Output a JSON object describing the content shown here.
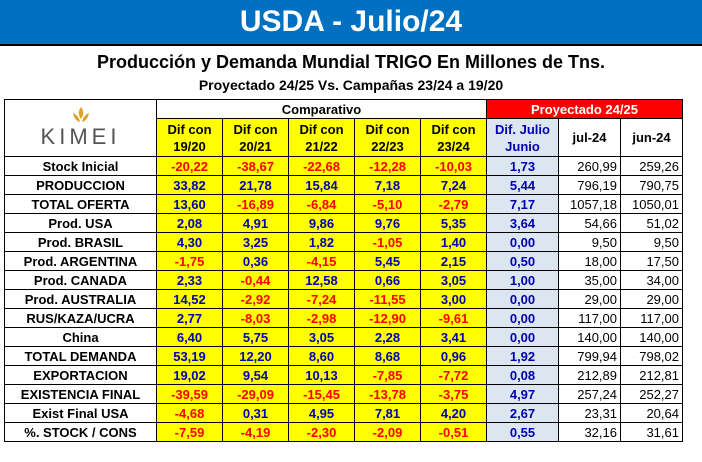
{
  "title": "USDA - Julio/24",
  "subtitle1": "Producción y Demanda Mundial TRIGO  En Millones de Tns.",
  "subtitle2": "Proyectado 24/25  Vs. Campañas 23/24 a 19/20",
  "logo_text": "KIMEI",
  "headers": {
    "comparativo": "Comparativo",
    "proyectado": "Proyectado  24/25",
    "cols": [
      {
        "l1": "Dif con",
        "l2": "19/20"
      },
      {
        "l1": "Dif con",
        "l2": "20/21"
      },
      {
        "l1": "Dif con",
        "l2": "21/22"
      },
      {
        "l1": "Dif con",
        "l2": "22/23"
      },
      {
        "l1": "Dif con",
        "l2": "23/24"
      }
    ],
    "dif_julio": {
      "l1": "Dif. Julio",
      "l2": "Junio"
    },
    "jul": "jul-24",
    "jun": "jun-24"
  },
  "rows": [
    {
      "label": "Stock Inicial",
      "d": [
        "-20,22",
        "-38,67",
        "-22,68",
        "-12,28",
        "-10,03"
      ],
      "dif": "1,73",
      "jul": "260,99",
      "jun": "259,26"
    },
    {
      "label": "PRODUCCION",
      "d": [
        "33,82",
        "21,78",
        "15,84",
        "7,18",
        "7,24"
      ],
      "dif": "5,44",
      "jul": "796,19",
      "jun": "790,75"
    },
    {
      "label": "TOTAL OFERTA",
      "d": [
        "13,60",
        "-16,89",
        "-6,84",
        "-5,10",
        "-2,79"
      ],
      "dif": "7,17",
      "jul": "1057,18",
      "jun": "1050,01"
    },
    {
      "label": "Prod. USA",
      "d": [
        "2,08",
        "4,91",
        "9,86",
        "9,76",
        "5,35"
      ],
      "dif": "3,64",
      "jul": "54,66",
      "jun": "51,02"
    },
    {
      "label": "Prod. BRASIL",
      "d": [
        "4,30",
        "3,25",
        "1,82",
        "-1,05",
        "1,40"
      ],
      "dif": "0,00",
      "jul": "9,50",
      "jun": "9,50"
    },
    {
      "label": "Prod. ARGENTINA",
      "d": [
        "-1,75",
        "0,36",
        "-4,15",
        "5,45",
        "2,15"
      ],
      "dif": "0,50",
      "jul": "18,00",
      "jun": "17,50"
    },
    {
      "label": "Prod. CANADA",
      "d": [
        "2,33",
        "-0,44",
        "12,58",
        "0,66",
        "3,05"
      ],
      "dif": "1,00",
      "jul": "35,00",
      "jun": "34,00"
    },
    {
      "label": "Prod. AUSTRALIA",
      "d": [
        "14,52",
        "-2,92",
        "-7,24",
        "-11,55",
        "3,00"
      ],
      "dif": "0,00",
      "jul": "29,00",
      "jun": "29,00"
    },
    {
      "label": "RUS/KAZA/UCRA",
      "d": [
        "2,77",
        "-8,03",
        "-2,98",
        "-12,90",
        "-9,61"
      ],
      "dif": "0,00",
      "jul": "117,00",
      "jun": "117,00"
    },
    {
      "label": "China",
      "d": [
        "6,40",
        "5,75",
        "3,05",
        "2,28",
        "3,41"
      ],
      "dif": "0,00",
      "jul": "140,00",
      "jun": "140,00"
    },
    {
      "label": "TOTAL DEMANDA",
      "d": [
        "53,19",
        "12,20",
        "8,60",
        "8,68",
        "0,96"
      ],
      "dif": "1,92",
      "jul": "799,94",
      "jun": "798,02"
    },
    {
      "label": "EXPORTACION",
      "d": [
        "19,02",
        "9,54",
        "10,13",
        "-7,85",
        "-7,72"
      ],
      "dif": "0,08",
      "jul": "212,89",
      "jun": "212,81"
    },
    {
      "label": "EXISTENCIA FINAL",
      "d": [
        "-39,59",
        "-29,09",
        "-15,45",
        "-13,78",
        "-3,75"
      ],
      "dif": "4,97",
      "jul": "257,24",
      "jun": "252,27"
    },
    {
      "label": "Exist Final USA",
      "d": [
        "-4,68",
        "0,31",
        "4,95",
        "7,81",
        "4,20"
      ],
      "dif": "2,67",
      "jul": "23,31",
      "jun": "20,64"
    },
    {
      "label": "%.  STOCK / CONS",
      "d": [
        "-7,59",
        "-4,19",
        "-2,30",
        "-2,09",
        "-0,51"
      ],
      "dif": "0,55",
      "jul": "32,16",
      "jun": "31,61"
    }
  ]
}
